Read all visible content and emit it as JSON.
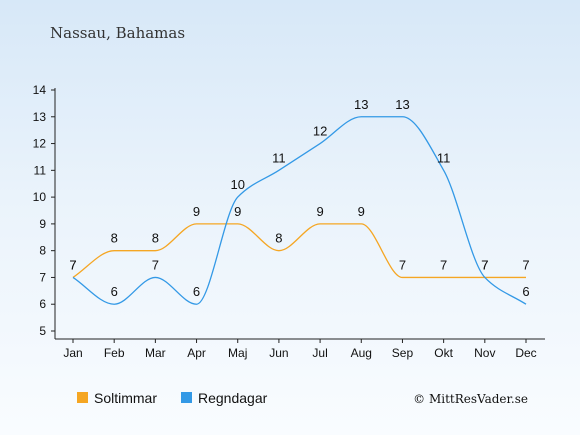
{
  "title": "Nassau, Bahamas",
  "credit": "© MittResVader.se",
  "chart_data": {
    "type": "line",
    "title": "Nassau, Bahamas",
    "categories": [
      "Jan",
      "Feb",
      "Mar",
      "Apr",
      "Maj",
      "Jun",
      "Jul",
      "Aug",
      "Sep",
      "Okt",
      "Nov",
      "Dec"
    ],
    "ylim": [
      5,
      14
    ],
    "yticks": [
      5,
      6,
      7,
      8,
      9,
      10,
      11,
      12,
      13,
      14
    ],
    "grid": false,
    "legend_position": "bottom",
    "series": [
      {
        "name": "Soltimmar",
        "color": "#f5a623",
        "values": [
          7,
          8,
          8,
          9,
          9,
          8,
          9,
          9,
          7,
          7,
          7,
          7
        ]
      },
      {
        "name": "Regndagar",
        "color": "#3399e6",
        "values": [
          7,
          6,
          7,
          6,
          10,
          11,
          12,
          13,
          13,
          11,
          7,
          6
        ]
      }
    ]
  }
}
